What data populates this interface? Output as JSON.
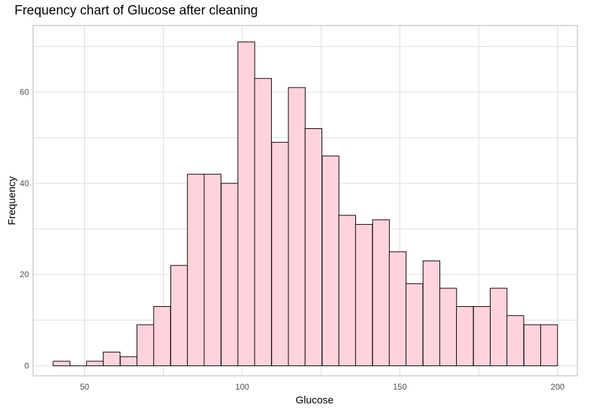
{
  "chart_data": {
    "type": "bar",
    "title": "Frequency chart of Glucose after cleaning",
    "xlabel": "Glucose",
    "ylabel": "Frequency",
    "bin_width": 5.33,
    "x_ticks": [
      50,
      100,
      150,
      200
    ],
    "y_ticks": [
      0,
      20,
      40,
      60
    ],
    "xlim": [
      33.7,
      206.3
    ],
    "ylim": [
      -2.2,
      74.6
    ],
    "grid": true,
    "colors": {
      "fill": "#ffd3dc",
      "stroke": "#000000",
      "grid": "#dcdcdc",
      "panel_border": "#b3b3b3"
    },
    "bins": [
      {
        "x": 42.7,
        "count": 1
      },
      {
        "x": 48.0,
        "count": 0
      },
      {
        "x": 53.3,
        "count": 1
      },
      {
        "x": 58.6,
        "count": 3
      },
      {
        "x": 64.0,
        "count": 2
      },
      {
        "x": 69.3,
        "count": 9
      },
      {
        "x": 74.6,
        "count": 13
      },
      {
        "x": 80.0,
        "count": 22
      },
      {
        "x": 85.3,
        "count": 42
      },
      {
        "x": 90.6,
        "count": 42
      },
      {
        "x": 96.0,
        "count": 40
      },
      {
        "x": 101.3,
        "count": 71
      },
      {
        "x": 106.6,
        "count": 63
      },
      {
        "x": 112.0,
        "count": 49
      },
      {
        "x": 117.3,
        "count": 61
      },
      {
        "x": 122.6,
        "count": 52
      },
      {
        "x": 128.0,
        "count": 46
      },
      {
        "x": 133.3,
        "count": 33
      },
      {
        "x": 138.6,
        "count": 31
      },
      {
        "x": 144.0,
        "count": 32
      },
      {
        "x": 149.3,
        "count": 25
      },
      {
        "x": 154.6,
        "count": 18
      },
      {
        "x": 160.0,
        "count": 23
      },
      {
        "x": 165.3,
        "count": 17
      },
      {
        "x": 170.6,
        "count": 13
      },
      {
        "x": 176.0,
        "count": 13
      },
      {
        "x": 181.3,
        "count": 17
      },
      {
        "x": 186.6,
        "count": 11
      },
      {
        "x": 192.0,
        "count": 9
      },
      {
        "x": 197.3,
        "count": 9
      }
    ]
  }
}
